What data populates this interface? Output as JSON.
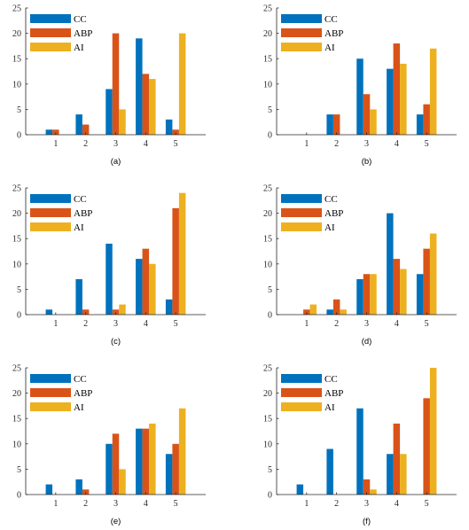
{
  "colors": {
    "CC": "#0072BD",
    "ABP": "#D95319",
    "AI": "#EDB120"
  },
  "chart_data": [
    {
      "type": "bar",
      "label": "(a)",
      "categories": [
        "1",
        "2",
        "3",
        "4",
        "5"
      ],
      "ylim": [
        0,
        25
      ],
      "yticks": [
        0,
        5,
        10,
        15,
        20,
        25
      ],
      "legend_position": "top-left",
      "series": [
        {
          "name": "CC",
          "values": [
            1,
            4,
            9,
            19,
            3
          ]
        },
        {
          "name": "ABP",
          "values": [
            1,
            2,
            20,
            12,
            1
          ]
        },
        {
          "name": "AI",
          "values": [
            0,
            0,
            5,
            11,
            20
          ]
        }
      ]
    },
    {
      "type": "bar",
      "label": "(b)",
      "categories": [
        "1",
        "2",
        "3",
        "4",
        "5"
      ],
      "ylim": [
        0,
        25
      ],
      "yticks": [
        0,
        5,
        10,
        15,
        20,
        25
      ],
      "legend_position": "top-left",
      "series": [
        {
          "name": "CC",
          "values": [
            0,
            4,
            15,
            13,
            4
          ]
        },
        {
          "name": "ABP",
          "values": [
            0,
            4,
            8,
            18,
            6
          ]
        },
        {
          "name": "AI",
          "values": [
            0,
            0,
            5,
            14,
            17
          ]
        }
      ]
    },
    {
      "type": "bar",
      "label": "(c)",
      "categories": [
        "1",
        "2",
        "3",
        "4",
        "5"
      ],
      "ylim": [
        0,
        25
      ],
      "yticks": [
        0,
        5,
        10,
        15,
        20,
        25
      ],
      "legend_position": "top-left",
      "series": [
        {
          "name": "CC",
          "values": [
            1,
            7,
            14,
            11,
            3
          ]
        },
        {
          "name": "ABP",
          "values": [
            0,
            1,
            1,
            13,
            21
          ]
        },
        {
          "name": "AI",
          "values": [
            0,
            0,
            2,
            10,
            24
          ]
        }
      ]
    },
    {
      "type": "bar",
      "label": "(d)",
      "categories": [
        "1",
        "2",
        "3",
        "4",
        "5"
      ],
      "ylim": [
        0,
        25
      ],
      "yticks": [
        0,
        5,
        10,
        15,
        20,
        25
      ],
      "legend_position": "top-left",
      "series": [
        {
          "name": "CC",
          "values": [
            0,
            1,
            7,
            20,
            8
          ]
        },
        {
          "name": "ABP",
          "values": [
            1,
            3,
            8,
            11,
            13
          ]
        },
        {
          "name": "AI",
          "values": [
            2,
            1,
            8,
            9,
            16
          ]
        }
      ]
    },
    {
      "type": "bar",
      "label": "(e)",
      "categories": [
        "1",
        "2",
        "3",
        "4",
        "5"
      ],
      "ylim": [
        0,
        25
      ],
      "yticks": [
        0,
        5,
        10,
        15,
        20,
        25
      ],
      "legend_position": "top-left",
      "series": [
        {
          "name": "CC",
          "values": [
            2,
            3,
            10,
            13,
            8
          ]
        },
        {
          "name": "ABP",
          "values": [
            0,
            1,
            12,
            13,
            10
          ]
        },
        {
          "name": "AI",
          "values": [
            0,
            0,
            5,
            14,
            17
          ]
        }
      ]
    },
    {
      "type": "bar",
      "label": "(f)",
      "categories": [
        "1",
        "2",
        "3",
        "4",
        "5"
      ],
      "ylim": [
        0,
        25
      ],
      "yticks": [
        0,
        5,
        10,
        15,
        20,
        25
      ],
      "legend_position": "top-left",
      "series": [
        {
          "name": "CC",
          "values": [
            2,
            9,
            17,
            8,
            0
          ]
        },
        {
          "name": "ABP",
          "values": [
            0,
            0,
            3,
            14,
            19
          ]
        },
        {
          "name": "AI",
          "values": [
            0,
            0,
            1,
            8,
            25
          ]
        }
      ]
    }
  ]
}
